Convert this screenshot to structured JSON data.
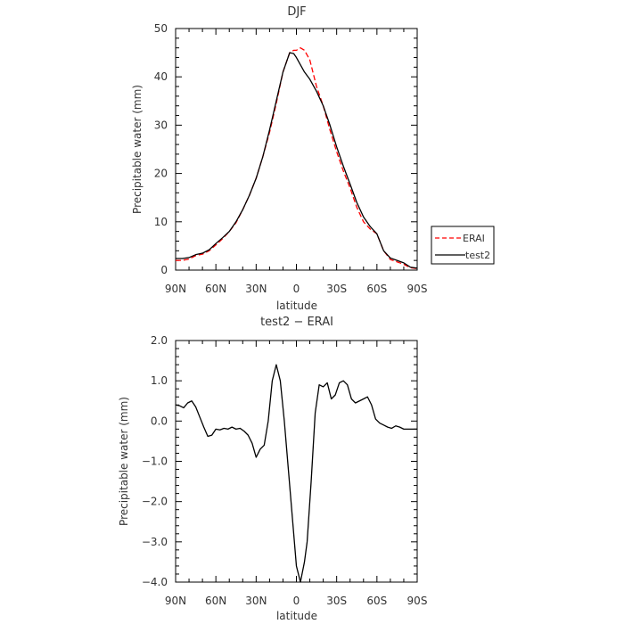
{
  "chart_data": [
    {
      "type": "line",
      "title": "DJF",
      "xlabel": "latitude",
      "ylabel": "Precipitable water (mm)",
      "xlim": [
        -90,
        90
      ],
      "ylim": [
        0,
        50
      ],
      "x_ticks": [
        -90,
        -60,
        -30,
        0,
        30,
        60,
        90
      ],
      "x_tick_labels": [
        "90N",
        "60N",
        "30N",
        "0",
        "30S",
        "60S",
        "90S"
      ],
      "y_ticks": [
        0,
        10,
        20,
        30,
        40,
        50
      ],
      "y_tick_labels": [
        "0",
        "10",
        "20",
        "30",
        "40",
        "50"
      ],
      "legend_position": "right",
      "series": [
        {
          "name": "ERAI",
          "color": "#ff0000",
          "style": "dashed",
          "x": [
            -90,
            -85,
            -80,
            -75,
            -70,
            -65,
            -60,
            -55,
            -50,
            -45,
            -40,
            -35,
            -30,
            -25,
            -20,
            -15,
            -10,
            -5,
            -2,
            0,
            3,
            6,
            10,
            15,
            20,
            25,
            30,
            35,
            40,
            45,
            50,
            55,
            60,
            65,
            70,
            75,
            80,
            85,
            90
          ],
          "y": [
            2.0,
            2.0,
            2.3,
            3.0,
            3.3,
            4.0,
            5.2,
            6.5,
            8.0,
            9.8,
            12.5,
            15.5,
            19.0,
            23.5,
            28.5,
            34.5,
            41.0,
            45.0,
            45.5,
            45.5,
            46.0,
            45.5,
            43.5,
            38.0,
            34.0,
            29.0,
            24.5,
            20.5,
            17.0,
            13.0,
            10.0,
            8.5,
            7.5,
            4.0,
            2.2,
            1.7,
            1.2,
            0.5,
            0.3
          ]
        },
        {
          "name": "test2",
          "color": "#000000",
          "style": "solid",
          "x": [
            -90,
            -85,
            -80,
            -75,
            -70,
            -65,
            -60,
            -55,
            -50,
            -45,
            -40,
            -35,
            -30,
            -25,
            -20,
            -15,
            -10,
            -5,
            -2,
            0,
            3,
            6,
            10,
            15,
            20,
            25,
            30,
            35,
            40,
            45,
            50,
            55,
            60,
            65,
            70,
            75,
            80,
            85,
            90
          ],
          "y": [
            2.4,
            2.4,
            2.6,
            3.2,
            3.5,
            4.2,
            5.5,
            6.7,
            8.0,
            10.0,
            12.5,
            15.5,
            19.0,
            23.5,
            29.0,
            35.0,
            41.0,
            45.0,
            44.8,
            44.0,
            42.5,
            41.0,
            39.5,
            37.0,
            34.0,
            30.0,
            25.5,
            21.5,
            17.8,
            14.0,
            11.0,
            9.0,
            7.5,
            4.0,
            2.5,
            2.0,
            1.5,
            0.6,
            0.4
          ]
        }
      ]
    },
    {
      "type": "line",
      "title": "test2 − ERAI",
      "xlabel": "latitude",
      "ylabel": "Precipitable water (mm)",
      "xlim": [
        -90,
        90
      ],
      "ylim": [
        -4.0,
        2.0
      ],
      "x_ticks": [
        -90,
        -60,
        -30,
        0,
        30,
        60,
        90
      ],
      "x_tick_labels": [
        "90N",
        "60N",
        "30N",
        "0",
        "30S",
        "60S",
        "90S"
      ],
      "y_ticks": [
        -4,
        -3,
        -2,
        -1,
        0,
        1,
        2
      ],
      "y_tick_labels": [
        "−4.0",
        "−3.0",
        "−2.0",
        "−1.0",
        "0.0",
        "1.0",
        "2.0"
      ],
      "series": [
        {
          "color": "#000000",
          "style": "solid",
          "x": [
            -90,
            -87,
            -84,
            -81,
            -78,
            -75,
            -72,
            -69,
            -66,
            -63,
            -60,
            -57,
            -54,
            -51,
            -48,
            -45,
            -42,
            -39,
            -36,
            -33,
            -30,
            -27,
            -24,
            -21,
            -18,
            -15,
            -12,
            -9,
            -6,
            -3,
            0,
            3,
            6,
            8,
            11,
            14,
            17,
            20,
            23,
            26,
            29,
            32,
            35,
            38,
            41,
            44,
            47,
            50,
            53,
            56,
            59,
            62,
            65,
            68,
            71,
            74,
            77,
            80,
            83,
            86,
            90
          ],
          "y": [
            0.4,
            0.38,
            0.33,
            0.45,
            0.5,
            0.35,
            0.1,
            -0.15,
            -0.38,
            -0.35,
            -0.2,
            -0.22,
            -0.18,
            -0.2,
            -0.15,
            -0.2,
            -0.18,
            -0.25,
            -0.35,
            -0.55,
            -0.9,
            -0.7,
            -0.6,
            0.0,
            1.0,
            1.4,
            1.0,
            0.0,
            -1.2,
            -2.4,
            -3.6,
            -4.0,
            -3.5,
            -3.0,
            -1.5,
            0.2,
            0.9,
            0.85,
            0.95,
            0.55,
            0.65,
            0.95,
            1.0,
            0.9,
            0.55,
            0.45,
            0.5,
            0.55,
            0.6,
            0.4,
            0.05,
            -0.05,
            -0.1,
            -0.15,
            -0.18,
            -0.12,
            -0.15,
            -0.2,
            -0.2,
            -0.2,
            -0.2
          ]
        }
      ]
    }
  ]
}
